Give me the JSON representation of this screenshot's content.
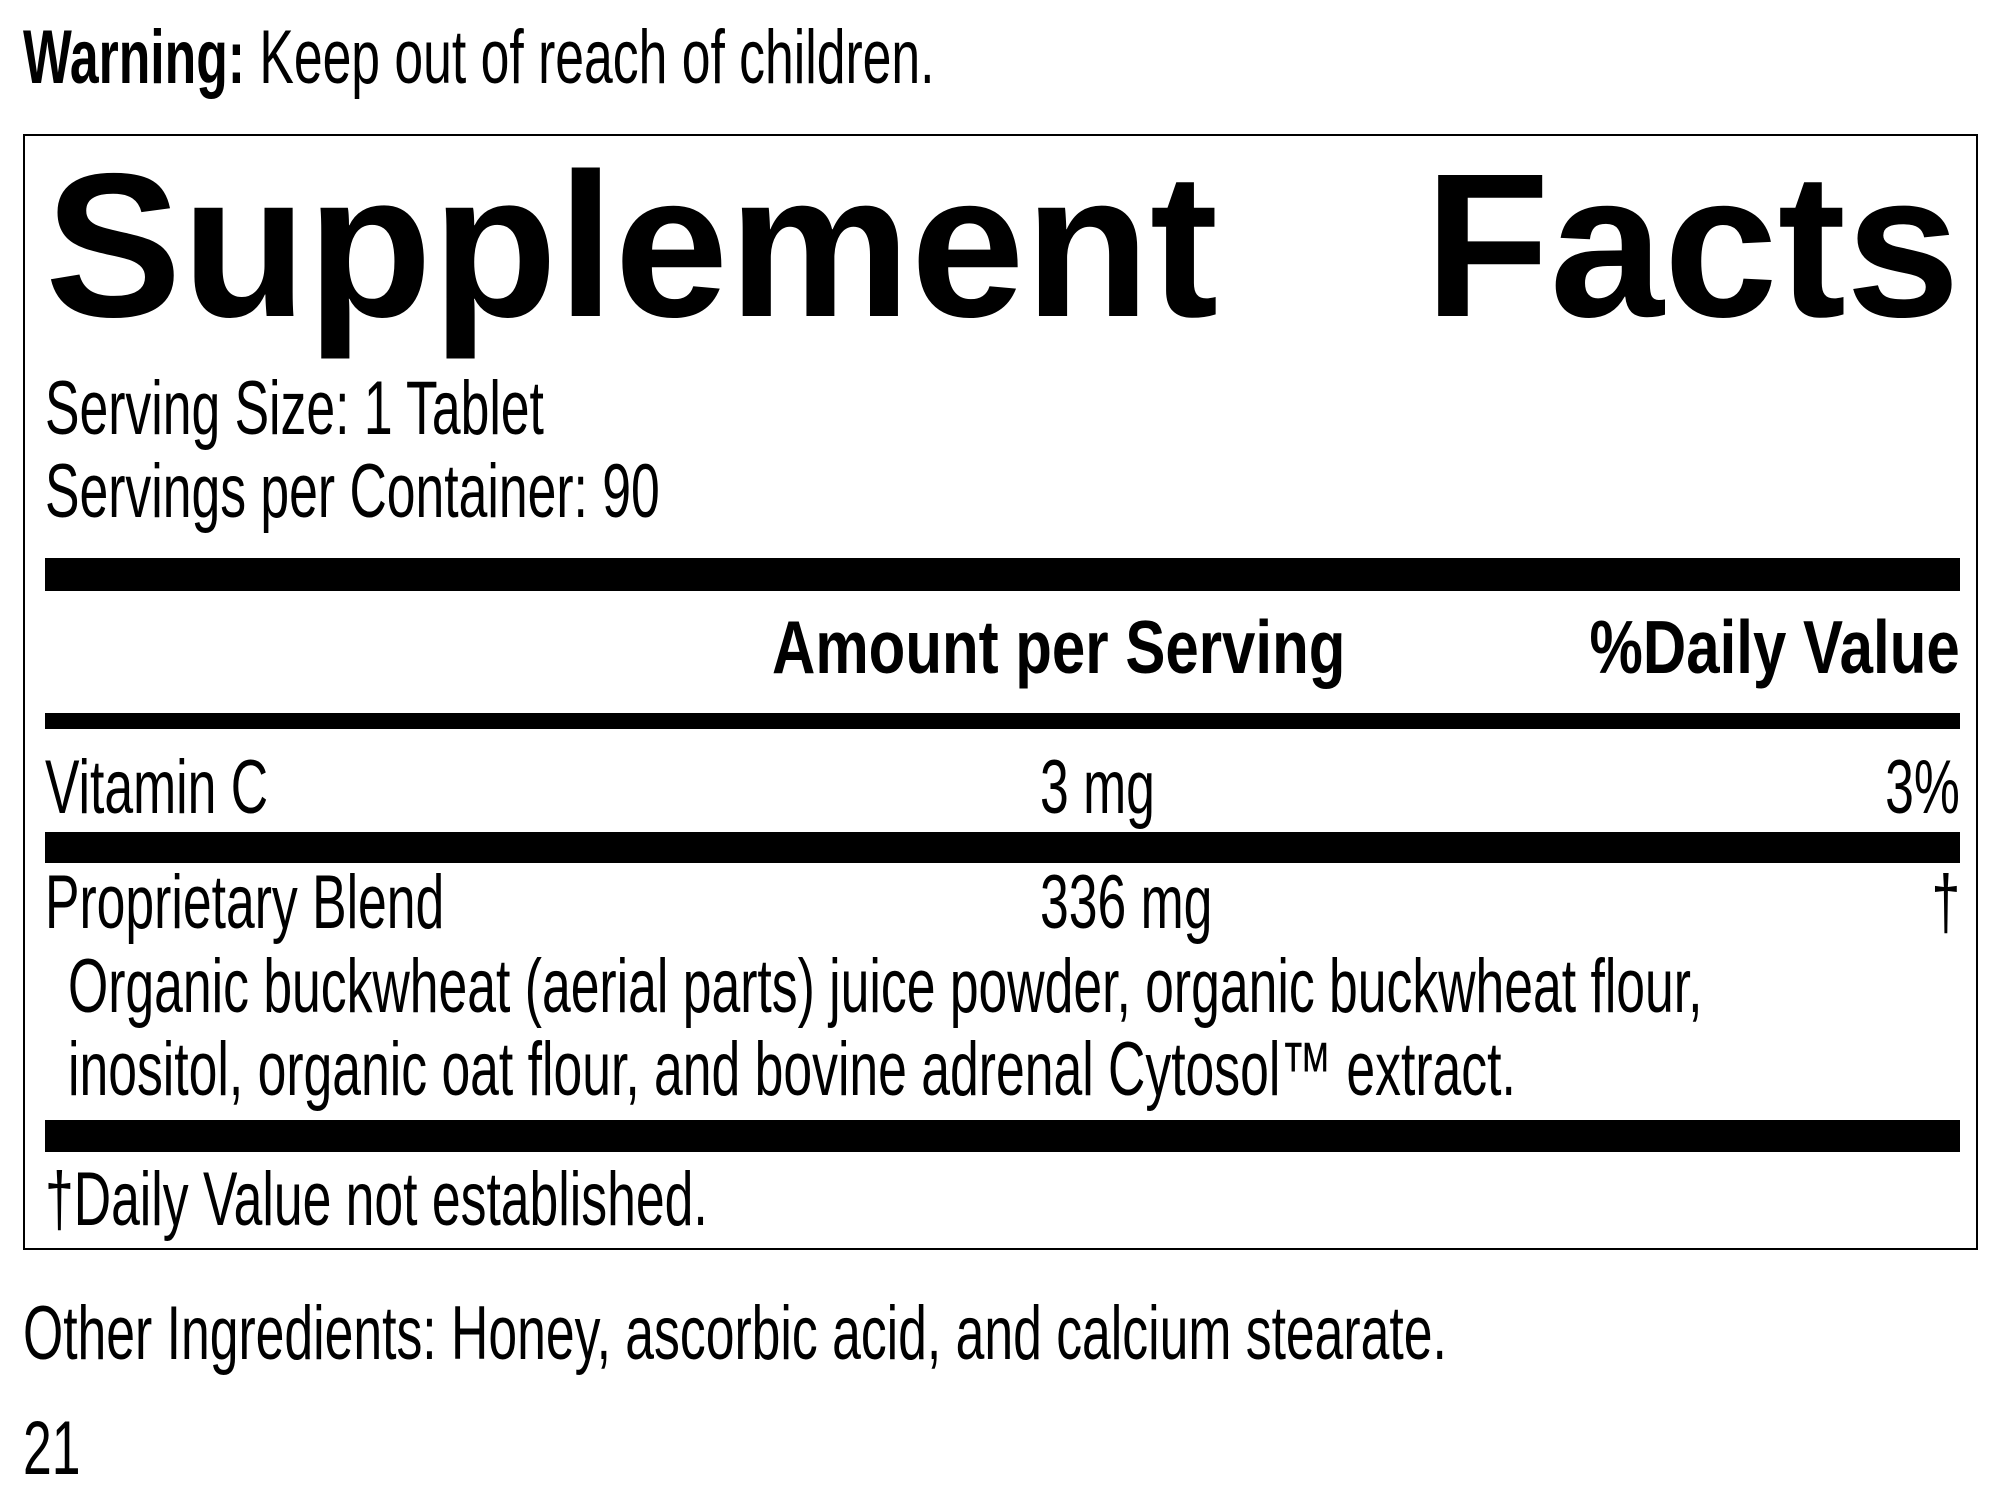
{
  "warning": {
    "label": "Warning:",
    "text": "Keep out of reach of children."
  },
  "facts": {
    "title_word1": "Supplement",
    "title_word2": "Facts",
    "serving_size": "Serving Size: 1 Tablet",
    "servings_per_container": "Servings per Container: 90",
    "columns": {
      "amount": "Amount per Serving",
      "daily_value": "%Daily Value"
    },
    "rows": [
      {
        "name": "Vitamin C",
        "amount": "3 mg",
        "daily_value": "3%"
      },
      {
        "name": "Proprietary Blend",
        "amount": "336 mg",
        "daily_value": "†"
      }
    ],
    "blend_ingredients": [
      "Organic buckwheat (aerial parts) juice powder, organic buckwheat flour,",
      "inositol, organic oat flour, and bovine adrenal Cytosol™ extract."
    ],
    "footnote": "†Daily Value not established."
  },
  "other_ingredients": "Other Ingredients: Honey, ascorbic acid, and calcium stearate.",
  "page_number": "21"
}
